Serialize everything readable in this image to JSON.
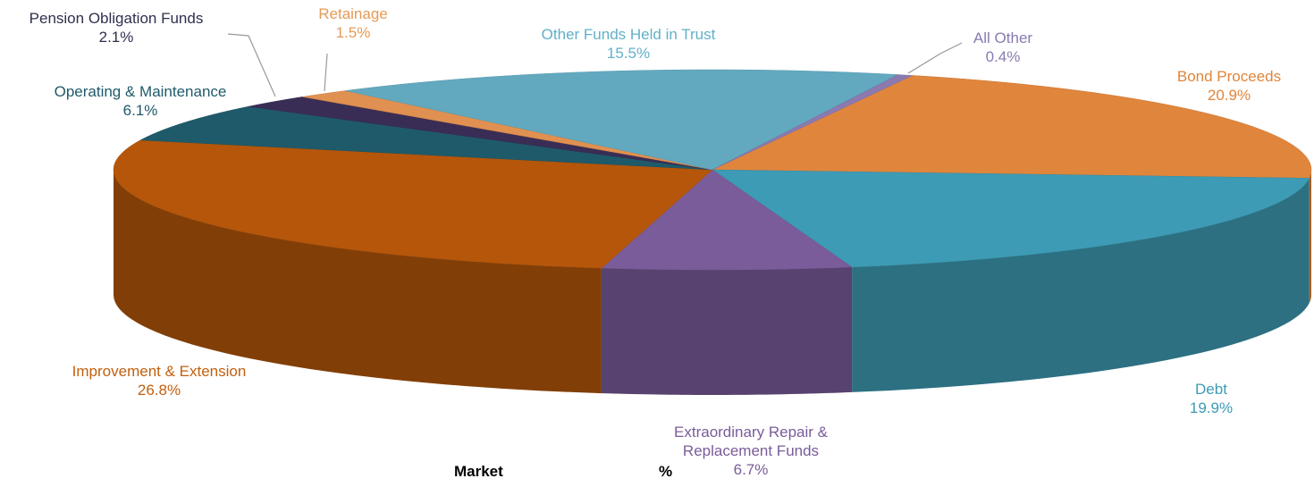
{
  "chart_data": {
    "type": "pie",
    "categories": [
      "Bond Proceeds",
      "Debt",
      "Extraordinary Repair & Replacement Funds",
      "Improvement & Extension",
      "Operating & Maintenance",
      "Pension Obligation Funds",
      "Retainage",
      "Other Funds Held in Trust",
      "All Other"
    ],
    "values": [
      20.9,
      19.9,
      6.7,
      26.8,
      6.1,
      2.1,
      1.5,
      15.5,
      0.4
    ],
    "value_labels": [
      "20.9%",
      "19.9%",
      "6.7%",
      "26.8%",
      "6.1%",
      "2.1%",
      "1.5%",
      "15.5%",
      "0.4%"
    ],
    "colors": [
      "#e0853c",
      "#3d9bb5",
      "#7a5c9a",
      "#b5560a",
      "#1f5a6a",
      "#3a2d55",
      "#e09050",
      "#62a9bf",
      "#8a7ab0"
    ],
    "footer_labels": [
      "Market",
      "%"
    ]
  }
}
